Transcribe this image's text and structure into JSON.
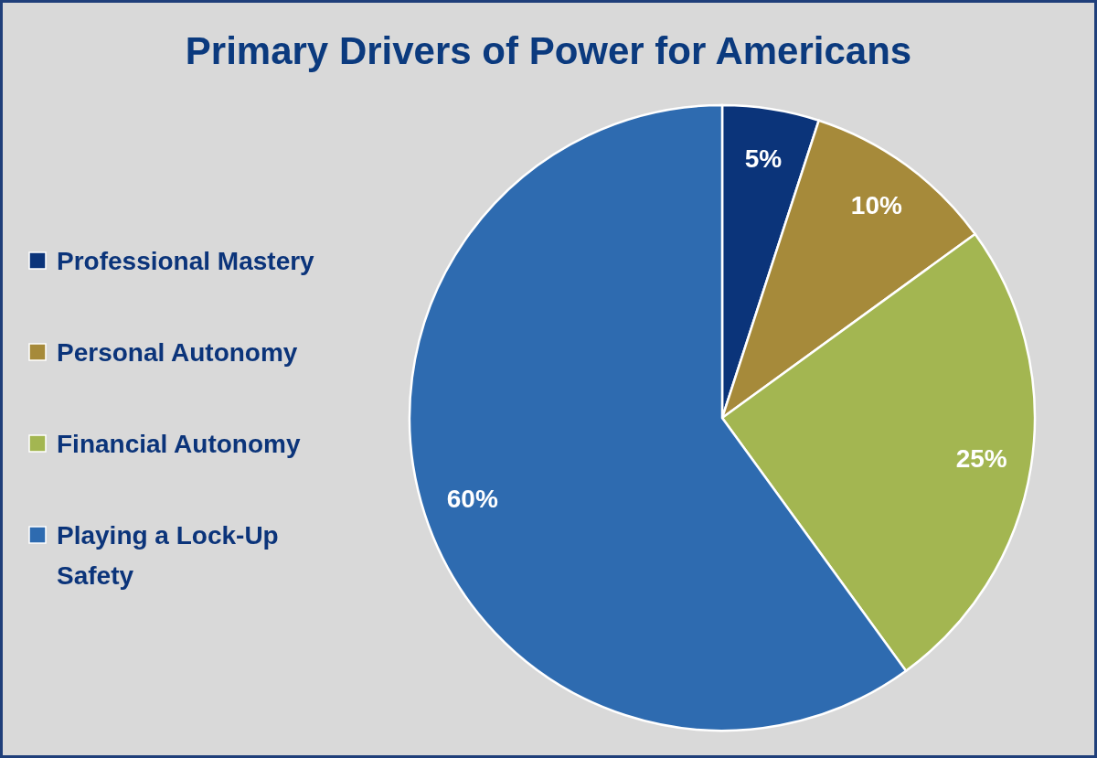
{
  "chart_data": {
    "type": "pie",
    "title": "Primary Drivers of Power for Americans",
    "categories": [
      "Professional Mastery",
      "Personal Autonomy",
      "Financial Autonomy",
      "Playing a Lock-Up Safety"
    ],
    "values": [
      5,
      10,
      25,
      60
    ],
    "colors": [
      "#0b347a",
      "#a68a3a",
      "#a3b651",
      "#2e6bb0"
    ],
    "value_labels": [
      "5%",
      "10%",
      "25%",
      "60%"
    ],
    "legend": "left"
  }
}
